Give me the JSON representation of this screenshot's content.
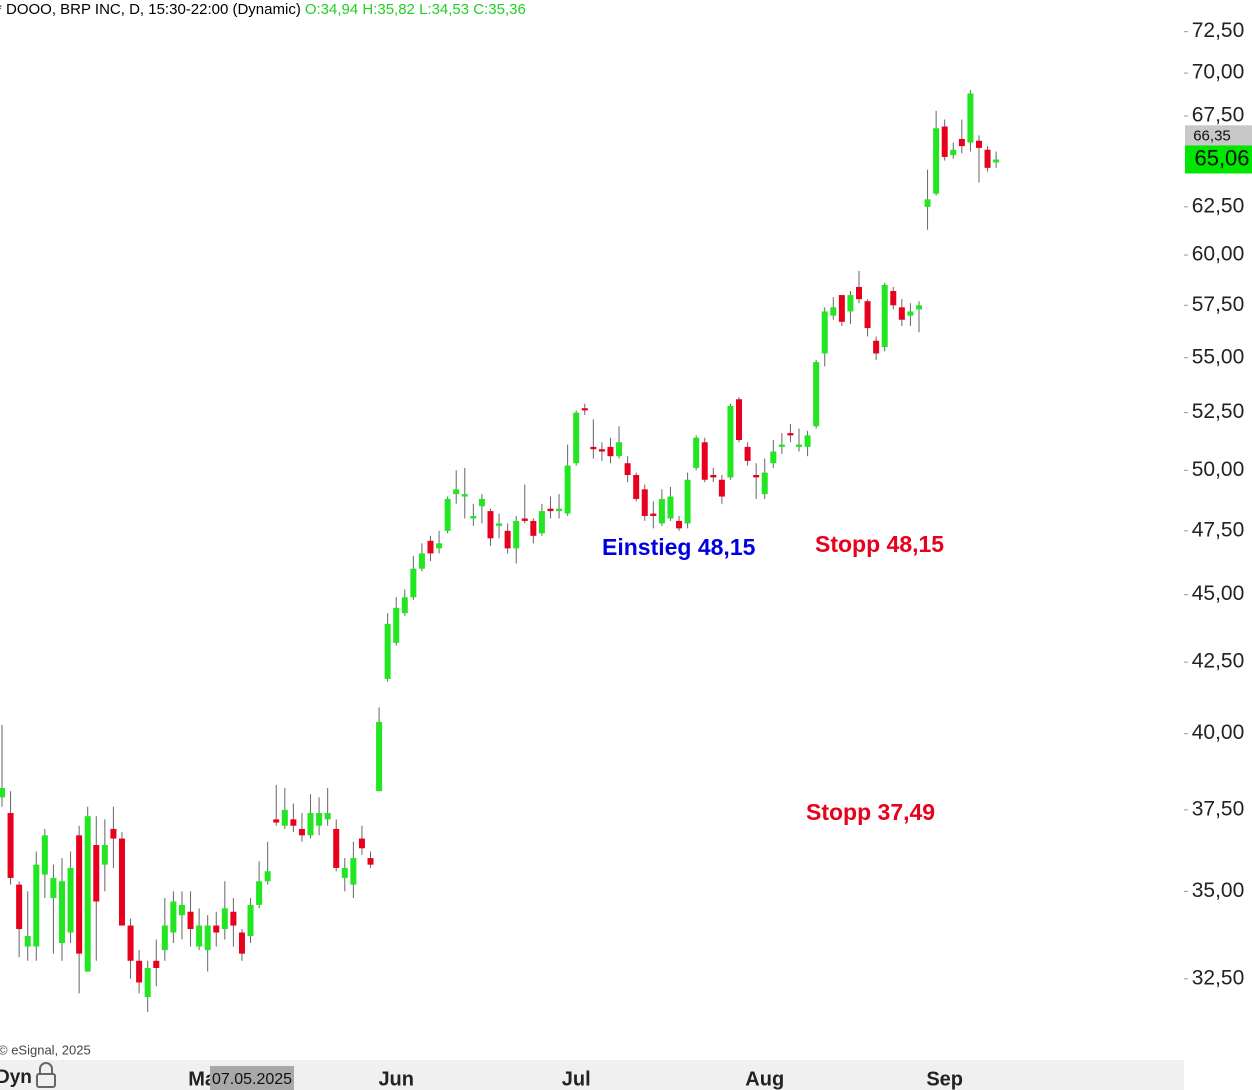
{
  "chart_data": {
    "type": "candlestick",
    "title": "* DOOO, BRP INC, D, 15:30-22:00 (Dynamic)",
    "ohlc_label": "O:34,94 H:35,82 L:34,53 C:35,36",
    "categories": [
      null,
      null,
      null,
      null,
      null,
      null,
      null,
      null,
      null,
      null,
      null,
      null,
      null,
      null,
      null,
      null,
      null,
      null,
      null,
      null,
      null,
      null,
      null,
      null,
      "May",
      null,
      null,
      null,
      null,
      null,
      null,
      null,
      null,
      null,
      null,
      null,
      null,
      null,
      null,
      null,
      null,
      null,
      null,
      null,
      null,
      null,
      "Jun",
      null,
      null,
      null,
      null,
      null,
      null,
      null,
      null,
      null,
      null,
      null,
      null,
      null,
      null,
      null,
      null,
      null,
      null,
      null,
      null,
      "Jul",
      null,
      null,
      null,
      null,
      null,
      null,
      null,
      null,
      null,
      null,
      null,
      null,
      null,
      null,
      null,
      null,
      null,
      null,
      null,
      null,
      null,
      "Aug",
      null,
      null,
      null,
      null,
      null,
      null,
      null,
      null,
      null,
      null,
      null,
      null,
      null,
      null,
      null,
      null,
      null,
      null,
      null,
      null,
      "Sep",
      null,
      null,
      null,
      null,
      null,
      null
    ],
    "open": [
      37.9,
      37.4,
      35.2,
      33.4,
      33.4,
      35.5,
      34.8,
      33.5,
      33.8,
      36.7,
      32.7,
      36.4,
      35.8,
      36.9,
      36.6,
      34.0,
      33.0,
      32.0,
      33.0,
      33.3,
      33.8,
      34.3,
      34.4,
      33.4,
      33.3,
      34.0,
      33.9,
      34.4,
      33.8,
      33.7,
      34.6,
      35.3,
      37.2,
      37.0,
      37.2,
      36.9,
      36.7,
      37.0,
      37.2,
      36.9,
      35.4,
      35.2,
      36.6,
      36.0,
      38.1,
      41.9,
      43.2,
      44.3,
      44.9,
      46.0,
      47.1,
      46.8,
      47.5,
      49.0,
      48.9,
      48.0,
      48.5,
      48.3,
      47.7,
      47.5,
      46.8,
      48.0,
      47.9,
      47.4,
      48.4,
      48.3,
      48.2,
      50.3,
      52.7,
      51.0,
      50.9,
      51.0,
      50.6,
      50.3,
      49.8,
      49.2,
      48.2,
      47.8,
      48.0,
      47.9,
      47.8,
      50.1,
      51.2,
      49.8,
      49.6,
      49.7,
      53.1,
      51.0,
      49.8,
      49.0,
      50.3,
      51.0,
      51.6,
      51.0,
      51.0,
      51.9,
      55.2,
      57.0,
      58.0,
      57.2,
      58.4,
      57.7,
      55.8,
      55.5,
      58.2,
      57.4,
      57.0,
      57.3,
      62.5,
      63.2,
      66.9,
      65.3,
      66.2,
      66.0,
      66.1,
      65.6,
      64.9
    ],
    "high": [
      40.3,
      38.1,
      35.3,
      35.0,
      36.2,
      36.9,
      35.8,
      36.0,
      36.2,
      37.0,
      37.6,
      37.3,
      37.2,
      37.6,
      36.8,
      34.2,
      33.3,
      33.0,
      33.6,
      34.8,
      35.0,
      35.0,
      35.0,
      34.5,
      34.3,
      34.4,
      35.3,
      34.8,
      33.9,
      34.8,
      35.9,
      36.5,
      38.3,
      38.2,
      37.7,
      37.4,
      38.0,
      37.9,
      38.2,
      37.2,
      36.0,
      36.5,
      37.0,
      36.2,
      40.9,
      44.3,
      44.9,
      45.2,
      46.5,
      47.0,
      47.3,
      47.5,
      48.9,
      50.0,
      50.1,
      48.6,
      49.0,
      48.4,
      48.2,
      47.8,
      48.1,
      49.4,
      48.0,
      48.6,
      48.9,
      49.0,
      51.1,
      52.6,
      52.9,
      52.2,
      51.2,
      51.4,
      51.9,
      50.6,
      49.9,
      49.4,
      48.7,
      49.2,
      49.3,
      48.1,
      49.9,
      51.5,
      51.4,
      50.1,
      49.8,
      52.9,
      53.2,
      51.2,
      50.3,
      50.5,
      51.3,
      51.6,
      52.0,
      51.8,
      51.7,
      54.9,
      57.4,
      57.9,
      58.0,
      58.2,
      59.2,
      57.8,
      56.0,
      58.6,
      58.4,
      57.8,
      57.6,
      57.7,
      64.5,
      67.8,
      67.3,
      66.0,
      67.3,
      69.0,
      66.4,
      65.8,
      65.5
    ],
    "low": [
      37.6,
      35.2,
      33.1,
      33.0,
      33.0,
      34.8,
      33.2,
      33.0,
      33.5,
      32.1,
      32.7,
      33.0,
      35.0,
      35.7,
      34.0,
      32.5,
      32.1,
      31.6,
      32.3,
      33.0,
      33.5,
      33.6,
      33.4,
      33.3,
      32.7,
      33.4,
      33.6,
      33.4,
      33.0,
      33.5,
      34.5,
      35.2,
      37.0,
      36.9,
      36.8,
      36.5,
      36.6,
      36.7,
      37.0,
      35.6,
      35.0,
      34.8,
      36.1,
      35.7,
      38.1,
      41.8,
      43.1,
      44.2,
      44.8,
      45.9,
      46.3,
      46.6,
      47.4,
      48.6,
      48.0,
      47.7,
      47.8,
      46.9,
      47.2,
      46.6,
      46.2,
      47.8,
      47.0,
      47.3,
      48.0,
      48.0,
      48.1,
      50.2,
      52.4,
      50.5,
      50.4,
      50.3,
      50.5,
      49.5,
      48.7,
      47.9,
      47.6,
      47.7,
      47.9,
      47.5,
      47.6,
      50.0,
      49.5,
      49.5,
      48.6,
      49.6,
      51.2,
      50.2,
      48.8,
      48.8,
      50.1,
      50.7,
      51.2,
      50.8,
      50.6,
      51.8,
      54.6,
      56.8,
      56.5,
      56.6,
      57.6,
      56.0,
      54.9,
      55.3,
      57.3,
      56.5,
      56.5,
      56.2,
      61.3,
      63.1,
      65.0,
      65.1,
      65.4,
      65.5,
      63.8,
      64.4,
      64.6
    ],
    "close": [
      38.2,
      35.4,
      33.9,
      33.7,
      35.8,
      36.7,
      35.4,
      35.3,
      35.7,
      33.2,
      37.3,
      34.7,
      36.4,
      36.6,
      34.0,
      33.0,
      32.4,
      32.8,
      32.8,
      34.0,
      34.7,
      34.6,
      33.9,
      34.0,
      34.0,
      33.8,
      34.5,
      34.0,
      33.2,
      34.6,
      35.3,
      35.6,
      37.1,
      37.5,
      37.0,
      36.7,
      37.4,
      37.4,
      37.4,
      35.7,
      35.7,
      36.0,
      36.3,
      35.8,
      40.4,
      43.9,
      44.5,
      44.9,
      46.0,
      46.6,
      46.6,
      47.0,
      48.8,
      49.2,
      49.0,
      48.1,
      48.8,
      47.2,
      47.8,
      46.8,
      47.9,
      47.9,
      47.3,
      48.3,
      48.3,
      48.4,
      50.2,
      52.5,
      52.6,
      50.9,
      50.8,
      50.6,
      51.2,
      49.8,
      48.8,
      48.1,
      48.1,
      48.8,
      48.9,
      47.6,
      49.6,
      51.4,
      49.6,
      49.7,
      48.9,
      52.8,
      51.3,
      50.4,
      49.7,
      49.9,
      50.8,
      51.1,
      51.5,
      51.1,
      51.5,
      54.8,
      57.2,
      57.4,
      56.7,
      58.0,
      57.8,
      56.4,
      55.2,
      58.5,
      57.5,
      56.8,
      57.2,
      57.5,
      62.9,
      66.8,
      65.2,
      65.6,
      65.8,
      68.8,
      65.7,
      64.6,
      65.06
    ],
    "up_color": "#22e622",
    "down_color": "#e8001c",
    "wick_color": "#666666",
    "log_scale": true,
    "grid": false,
    "ylim": [
      30.34,
      74.47
    ],
    "yticks": [
      {
        "value": 32.5,
        "label": "32,50"
      },
      {
        "value": 35,
        "label": "35,00"
      },
      {
        "value": 37.5,
        "label": "37,50"
      },
      {
        "value": 40,
        "label": "40,00"
      },
      {
        "value": 42.5,
        "label": "42,50"
      },
      {
        "value": 45,
        "label": "45,00"
      },
      {
        "value": 47.5,
        "label": "47,50"
      },
      {
        "value": 50,
        "label": "50,00"
      },
      {
        "value": 52.5,
        "label": "52,50"
      },
      {
        "value": 55,
        "label": "55,00"
      },
      {
        "value": 57.5,
        "label": "57,50"
      },
      {
        "value": 60,
        "label": "60,00"
      },
      {
        "value": 62.5,
        "label": "62,50"
      },
      {
        "value": 67.5,
        "label": "67,50"
      },
      {
        "value": 70,
        "label": "70,00"
      },
      {
        "value": 72.5,
        "label": "72,50"
      }
    ],
    "price_markers": [
      {
        "value": 66.35,
        "label": "66,35",
        "color": "#c8c8c8"
      },
      {
        "value": 65.06,
        "label": "65,06",
        "color": "#00e600"
      }
    ],
    "annotations": [
      {
        "text": "Einstieg 48,15",
        "color": "#0000e0"
      },
      {
        "text": "Stopp 48,15",
        "color": "#e8001c"
      },
      {
        "text": "Stopp 37,49",
        "color": "#e8001c"
      }
    ],
    "crosshair_date": "07.05.2025",
    "credit": "© eSignal, 2025",
    "mode_label": "Dyn"
  }
}
